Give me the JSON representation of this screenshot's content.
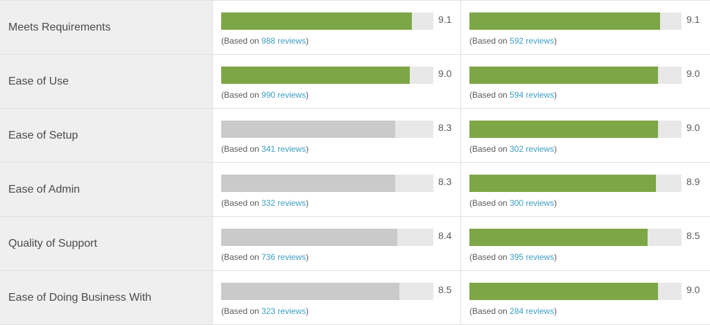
{
  "colors": {
    "highlight": "#7da646",
    "neutral": "#cacaca",
    "track": "#e8e8e8",
    "link": "#3c9ec4"
  },
  "based_prefix": "(Based on ",
  "based_suffix": ")",
  "rows": [
    {
      "label": "Meets Requirements",
      "a": {
        "score": "9.1",
        "reviews": "988 reviews",
        "highlight": true
      },
      "b": {
        "score": "9.1",
        "reviews": "592 reviews",
        "highlight": true
      }
    },
    {
      "label": "Ease of Use",
      "a": {
        "score": "9.0",
        "reviews": "990 reviews",
        "highlight": true
      },
      "b": {
        "score": "9.0",
        "reviews": "594 reviews",
        "highlight": true
      }
    },
    {
      "label": "Ease of Setup",
      "a": {
        "score": "8.3",
        "reviews": "341 reviews",
        "highlight": false
      },
      "b": {
        "score": "9.0",
        "reviews": "302 reviews",
        "highlight": true
      }
    },
    {
      "label": "Ease of Admin",
      "a": {
        "score": "8.3",
        "reviews": "332 reviews",
        "highlight": false
      },
      "b": {
        "score": "8.9",
        "reviews": "300 reviews",
        "highlight": true
      }
    },
    {
      "label": "Quality of Support",
      "a": {
        "score": "8.4",
        "reviews": "736 reviews",
        "highlight": false
      },
      "b": {
        "score": "8.5",
        "reviews": "395 reviews",
        "highlight": true
      }
    },
    {
      "label": "Ease of Doing Business With",
      "a": {
        "score": "8.5",
        "reviews": "323 reviews",
        "highlight": false
      },
      "b": {
        "score": "9.0",
        "reviews": "284 reviews",
        "highlight": true
      }
    }
  ]
}
